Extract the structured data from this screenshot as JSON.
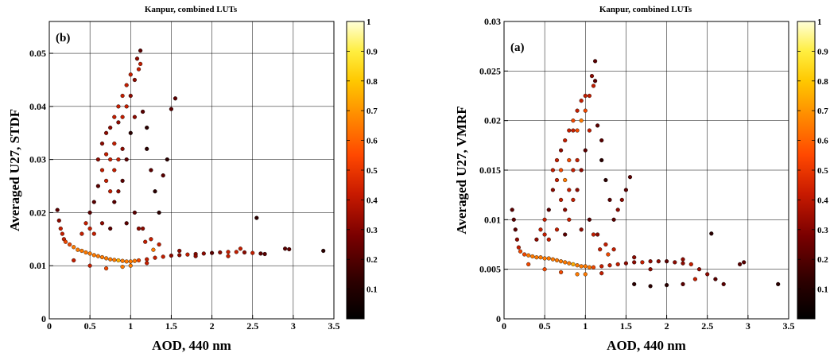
{
  "chart_data": [
    {
      "type": "scatter",
      "title": "Kanpur, combined LUTs",
      "panel_label": "(b)",
      "xlabel": "AOD, 440 nm",
      "ylabel": "Averaged U27, STDF",
      "xlim": [
        0,
        3.5
      ],
      "ylim": [
        0,
        0.056
      ],
      "xticks": [
        "0",
        "0.5",
        "1",
        "1.5",
        "2",
        "2.5",
        "3",
        "3.5"
      ],
      "yticks": [
        "0",
        "0.01",
        "0.02",
        "0.03",
        "0.04",
        "0.05"
      ],
      "grid": true,
      "colorbar": {
        "range": [
          0,
          1
        ],
        "ticks": [
          "0.1",
          "0.2",
          "0.3",
          "0.4",
          "0.5",
          "0.6",
          "0.7",
          "0.8",
          "0.9",
          "1"
        ]
      },
      "points": [
        [
          0.1,
          0.0205
        ],
        [
          0.12,
          0.0185
        ],
        [
          0.14,
          0.017
        ],
        [
          0.16,
          0.016
        ],
        [
          0.18,
          0.015
        ],
        [
          0.2,
          0.0145
        ],
        [
          0.25,
          0.014
        ],
        [
          0.3,
          0.0135
        ],
        [
          0.35,
          0.013
        ],
        [
          0.4,
          0.0128
        ],
        [
          0.45,
          0.0125
        ],
        [
          0.5,
          0.0123
        ],
        [
          0.55,
          0.012
        ],
        [
          0.6,
          0.0118
        ],
        [
          0.65,
          0.0116
        ],
        [
          0.7,
          0.0114
        ],
        [
          0.75,
          0.0112
        ],
        [
          0.8,
          0.0111
        ],
        [
          0.85,
          0.011
        ],
        [
          0.9,
          0.0109
        ],
        [
          0.95,
          0.0108
        ],
        [
          1.0,
          0.0108
        ],
        [
          1.05,
          0.0109
        ],
        [
          1.1,
          0.011
        ],
        [
          1.2,
          0.0112
        ],
        [
          1.3,
          0.0115
        ],
        [
          1.4,
          0.0117
        ],
        [
          1.5,
          0.0119
        ],
        [
          1.6,
          0.012
        ],
        [
          1.7,
          0.0121
        ],
        [
          1.8,
          0.0122
        ],
        [
          1.9,
          0.0123
        ],
        [
          2.0,
          0.0124
        ],
        [
          2.1,
          0.0125
        ],
        [
          2.2,
          0.0126
        ],
        [
          2.3,
          0.0126
        ],
        [
          2.4,
          0.0125
        ],
        [
          2.5,
          0.0124
        ],
        [
          2.6,
          0.0123
        ],
        [
          2.65,
          0.0122
        ],
        [
          2.9,
          0.0132
        ],
        [
          2.95,
          0.0131
        ],
        [
          3.37,
          0.0128
        ],
        [
          2.55,
          0.019
        ],
        [
          0.4,
          0.016
        ],
        [
          0.45,
          0.018
        ],
        [
          0.5,
          0.02
        ],
        [
          0.55,
          0.022
        ],
        [
          0.6,
          0.025
        ],
        [
          0.6,
          0.03
        ],
        [
          0.65,
          0.028
        ],
        [
          0.65,
          0.033
        ],
        [
          0.7,
          0.026
        ],
        [
          0.7,
          0.031
        ],
        [
          0.7,
          0.035
        ],
        [
          0.75,
          0.024
        ],
        [
          0.75,
          0.03
        ],
        [
          0.75,
          0.036
        ],
        [
          0.8,
          0.022
        ],
        [
          0.8,
          0.028
        ],
        [
          0.8,
          0.033
        ],
        [
          0.8,
          0.038
        ],
        [
          0.85,
          0.024
        ],
        [
          0.85,
          0.03
        ],
        [
          0.85,
          0.037
        ],
        [
          0.85,
          0.04
        ],
        [
          0.9,
          0.026
        ],
        [
          0.9,
          0.032
        ],
        [
          0.9,
          0.038
        ],
        [
          0.9,
          0.042
        ],
        [
          0.95,
          0.03
        ],
        [
          0.95,
          0.04
        ],
        [
          0.95,
          0.044
        ],
        [
          1.0,
          0.035
        ],
        [
          1.0,
          0.042
        ],
        [
          1.0,
          0.046
        ],
        [
          1.05,
          0.038
        ],
        [
          1.05,
          0.045
        ],
        [
          1.08,
          0.049
        ],
        [
          1.1,
          0.047
        ],
        [
          1.12,
          0.0505
        ],
        [
          1.12,
          0.048
        ],
        [
          1.15,
          0.039
        ],
        [
          1.2,
          0.036
        ],
        [
          1.2,
          0.032
        ],
        [
          1.25,
          0.028
        ],
        [
          1.3,
          0.024
        ],
        [
          1.35,
          0.02
        ],
        [
          1.4,
          0.027
        ],
        [
          1.45,
          0.03
        ],
        [
          1.5,
          0.0395
        ],
        [
          1.55,
          0.0415
        ],
        [
          0.5,
          0.017
        ],
        [
          0.55,
          0.016
        ],
        [
          0.65,
          0.018
        ],
        [
          0.75,
          0.017
        ],
        [
          0.95,
          0.018
        ],
        [
          1.05,
          0.02
        ],
        [
          1.15,
          0.017
        ],
        [
          1.25,
          0.015
        ],
        [
          1.35,
          0.014
        ],
        [
          0.3,
          0.011
        ],
        [
          0.5,
          0.01
        ],
        [
          0.7,
          0.0095
        ],
        [
          0.9,
          0.0098
        ],
        [
          1.0,
          0.01
        ],
        [
          1.2,
          0.0105
        ],
        [
          1.1,
          0.017
        ],
        [
          1.18,
          0.0145
        ],
        [
          1.28,
          0.013
        ],
        [
          1.6,
          0.0128
        ],
        [
          1.8,
          0.0118
        ],
        [
          2.2,
          0.0118
        ],
        [
          2.35,
          0.0132
        ]
      ]
    },
    {
      "type": "scatter",
      "title": "Kanpur, combined LUTs",
      "panel_label": "(a)",
      "xlabel": "AOD, 440 nm",
      "ylabel": "Averaged U27, VMRF",
      "xlim": [
        0,
        3.5
      ],
      "ylim": [
        0,
        0.03
      ],
      "xticks": [
        "0",
        "0.5",
        "1",
        "1.5",
        "2",
        "2.5",
        "3",
        "3.5"
      ],
      "yticks": [
        "0",
        "0.005",
        "0.01",
        "0.015",
        "0.02",
        "0.025",
        "0.03"
      ],
      "grid": true,
      "colorbar": {
        "range": [
          0,
          1
        ],
        "ticks": [
          "0.1",
          "0.2",
          "0.3",
          "0.4",
          "0.5",
          "0.6",
          "0.7",
          "0.8",
          "0.9",
          "1"
        ]
      },
      "points": [
        [
          0.1,
          0.011
        ],
        [
          0.12,
          0.01
        ],
        [
          0.14,
          0.009
        ],
        [
          0.16,
          0.008
        ],
        [
          0.18,
          0.0072
        ],
        [
          0.2,
          0.0068
        ],
        [
          0.25,
          0.0065
        ],
        [
          0.3,
          0.0064
        ],
        [
          0.35,
          0.0063
        ],
        [
          0.4,
          0.0062
        ],
        [
          0.45,
          0.0062
        ],
        [
          0.5,
          0.0061
        ],
        [
          0.55,
          0.0061
        ],
        [
          0.6,
          0.006
        ],
        [
          0.65,
          0.0059
        ],
        [
          0.7,
          0.0058
        ],
        [
          0.75,
          0.0057
        ],
        [
          0.8,
          0.0056
        ],
        [
          0.85,
          0.0055
        ],
        [
          0.9,
          0.0054
        ],
        [
          0.95,
          0.0053
        ],
        [
          1.0,
          0.0053
        ],
        [
          1.05,
          0.0052
        ],
        [
          1.1,
          0.0052
        ],
        [
          1.2,
          0.0053
        ],
        [
          1.3,
          0.0054
        ],
        [
          1.4,
          0.0055
        ],
        [
          1.5,
          0.0056
        ],
        [
          1.6,
          0.0057
        ],
        [
          1.7,
          0.0057
        ],
        [
          1.8,
          0.0058
        ],
        [
          1.9,
          0.0058
        ],
        [
          2.0,
          0.0058
        ],
        [
          2.1,
          0.0057
        ],
        [
          2.2,
          0.0056
        ],
        [
          2.3,
          0.0055
        ],
        [
          2.4,
          0.005
        ],
        [
          2.5,
          0.0045
        ],
        [
          2.6,
          0.004
        ],
        [
          2.7,
          0.0035
        ],
        [
          2.9,
          0.0055
        ],
        [
          2.95,
          0.0057
        ],
        [
          3.37,
          0.0035
        ],
        [
          2.55,
          0.0086
        ],
        [
          1.6,
          0.0035
        ],
        [
          1.8,
          0.0033
        ],
        [
          2.0,
          0.0034
        ],
        [
          2.2,
          0.0035
        ],
        [
          0.4,
          0.008
        ],
        [
          0.45,
          0.009
        ],
        [
          0.5,
          0.01
        ],
        [
          0.55,
          0.011
        ],
        [
          0.6,
          0.013
        ],
        [
          0.6,
          0.015
        ],
        [
          0.65,
          0.014
        ],
        [
          0.65,
          0.016
        ],
        [
          0.7,
          0.012
        ],
        [
          0.7,
          0.015
        ],
        [
          0.7,
          0.017
        ],
        [
          0.75,
          0.011
        ],
        [
          0.75,
          0.014
        ],
        [
          0.75,
          0.018
        ],
        [
          0.8,
          0.01
        ],
        [
          0.8,
          0.013
        ],
        [
          0.8,
          0.016
        ],
        [
          0.8,
          0.019
        ],
        [
          0.85,
          0.012
        ],
        [
          0.85,
          0.015
        ],
        [
          0.85,
          0.019
        ],
        [
          0.85,
          0.02
        ],
        [
          0.9,
          0.013
        ],
        [
          0.9,
          0.016
        ],
        [
          0.9,
          0.019
        ],
        [
          0.9,
          0.021
        ],
        [
          0.95,
          0.015
        ],
        [
          0.95,
          0.02
        ],
        [
          0.95,
          0.022
        ],
        [
          1.0,
          0.017
        ],
        [
          1.0,
          0.021
        ],
        [
          1.0,
          0.0225
        ],
        [
          1.05,
          0.019
        ],
        [
          1.05,
          0.0225
        ],
        [
          1.08,
          0.0245
        ],
        [
          1.1,
          0.0235
        ],
        [
          1.12,
          0.026
        ],
        [
          1.12,
          0.024
        ],
        [
          1.15,
          0.0195
        ],
        [
          1.2,
          0.018
        ],
        [
          1.2,
          0.016
        ],
        [
          1.25,
          0.014
        ],
        [
          1.3,
          0.012
        ],
        [
          1.35,
          0.01
        ],
        [
          1.4,
          0.011
        ],
        [
          1.45,
          0.012
        ],
        [
          1.5,
          0.013
        ],
        [
          1.55,
          0.0143
        ],
        [
          0.5,
          0.0085
        ],
        [
          0.55,
          0.008
        ],
        [
          0.65,
          0.009
        ],
        [
          0.75,
          0.0085
        ],
        [
          0.95,
          0.009
        ],
        [
          1.05,
          0.01
        ],
        [
          1.15,
          0.0085
        ],
        [
          1.25,
          0.0075
        ],
        [
          1.35,
          0.007
        ],
        [
          0.3,
          0.0055
        ],
        [
          0.5,
          0.005
        ],
        [
          0.7,
          0.0047
        ],
        [
          0.9,
          0.0045
        ],
        [
          1.0,
          0.0045
        ],
        [
          1.2,
          0.0046
        ],
        [
          1.1,
          0.0085
        ],
        [
          1.18,
          0.007
        ],
        [
          1.28,
          0.0065
        ],
        [
          1.6,
          0.0062
        ],
        [
          1.8,
          0.005
        ],
        [
          2.2,
          0.006
        ],
        [
          2.35,
          0.004
        ]
      ]
    }
  ]
}
